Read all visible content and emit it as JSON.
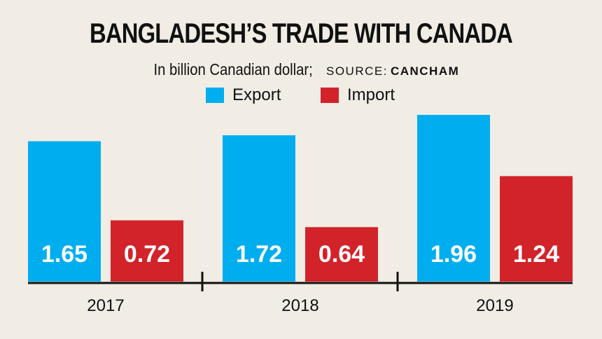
{
  "header": {
    "title": "BANGLADESH’S TRADE WITH CANADA",
    "unit": "In billion Canadian dollar;",
    "source_label": "SOURCE:",
    "source_name": "CANCHAM"
  },
  "colors": {
    "export": "#00aeef",
    "import": "#d2232a",
    "axis": "#111111",
    "background": "#f1ece4"
  },
  "chart_data": {
    "type": "bar",
    "title": "BANGLADESH’S TRADE WITH CANADA",
    "subtitle": "In billion Canadian dollar; SOURCE: CANCHAM",
    "categories": [
      "2017",
      "2018",
      "2019"
    ],
    "series": [
      {
        "name": "Export",
        "values": [
          1.65,
          1.72,
          1.96
        ]
      },
      {
        "name": "Import",
        "values": [
          0.72,
          0.64,
          1.24
        ]
      }
    ],
    "value_labels": {
      "Export": [
        "1.65",
        "1.72",
        "1.96"
      ],
      "Import": [
        "0.72",
        "0.64",
        "1.24"
      ]
    },
    "legend_position": "top-center",
    "grid": false,
    "ylim": [
      0,
      1.96
    ]
  }
}
